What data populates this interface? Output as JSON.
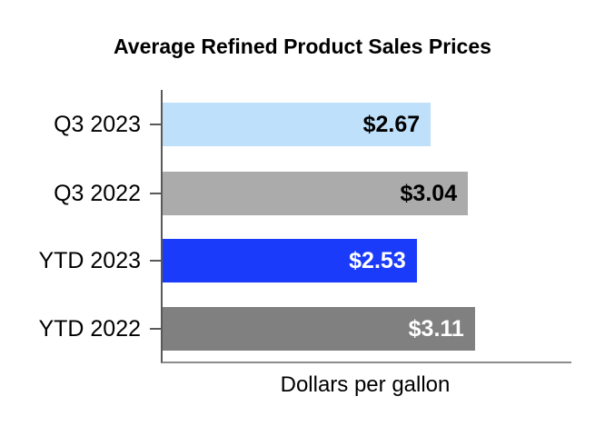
{
  "chart_data": {
    "type": "bar",
    "orientation": "horizontal",
    "title": "Average Refined Product Sales Prices",
    "xlabel": "Dollars per gallon",
    "ylabel": "",
    "categories": [
      "Q3 2023",
      "Q3 2022",
      "YTD 2023",
      "YTD 2022"
    ],
    "values": [
      2.67,
      3.04,
      2.53,
      3.11
    ],
    "data_labels": [
      "$2.67",
      "$3.04",
      "$2.53",
      "$3.11"
    ],
    "bar_colors": [
      "#BFE0FA",
      "#ABABAB",
      "#1A3CFA",
      "#808080"
    ],
    "label_colors": [
      "#000000",
      "#000000",
      "#FFFFFF",
      "#FFFFFF"
    ],
    "xlim": [
      0,
      4.07
    ],
    "grid": false,
    "legend": false,
    "background_color": "#FFFFFF",
    "axis_line_color": "#595959",
    "baseline_color": "#8C8C8C"
  }
}
